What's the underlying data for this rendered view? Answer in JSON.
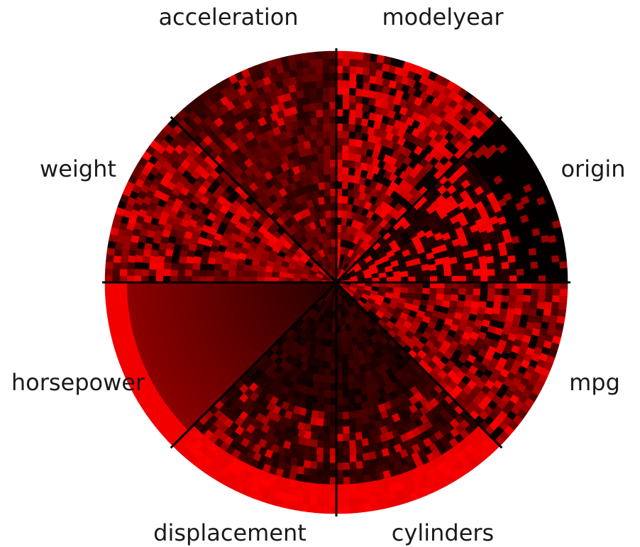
{
  "chart_data": {
    "type": "heatmap",
    "title": "",
    "layout": "radial pixel visualization, 8 sectors",
    "colormap": [
      "#000000",
      "#ff0000"
    ],
    "sectors": [
      {
        "label": "mpg",
        "texture": "mixed red and dark"
      },
      {
        "label": "cylinders",
        "texture": "dark interior, bright red outer band"
      },
      {
        "label": "displacement",
        "texture": "dark interior, bright red outer band"
      },
      {
        "label": "horsepower",
        "texture": "smooth dark red gradient, bright red outer band"
      },
      {
        "label": "weight",
        "texture": "mixed red and dark"
      },
      {
        "label": "acceleration",
        "texture": "mostly dark red"
      },
      {
        "label": "modelyear",
        "texture": "bright red and dark mixed"
      },
      {
        "label": "origin",
        "texture": "bright red scattered inner, black outer"
      }
    ]
  }
}
